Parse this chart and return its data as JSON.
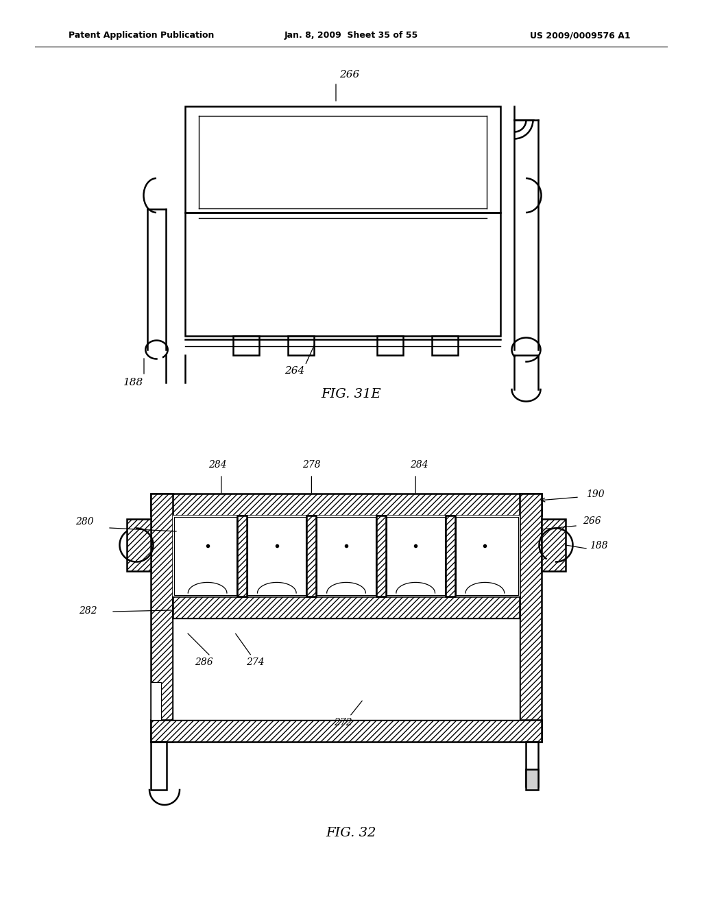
{
  "bg_color": "#ffffff",
  "line_color": "#000000",
  "header_text_left": "Patent Application Publication",
  "header_text_mid": "Jan. 8, 2009  Sheet 35 of 55",
  "header_text_right": "US 2009/0009576 A1",
  "fig31e_label": "FIG. 31E",
  "fig32_label": "FIG. 32"
}
